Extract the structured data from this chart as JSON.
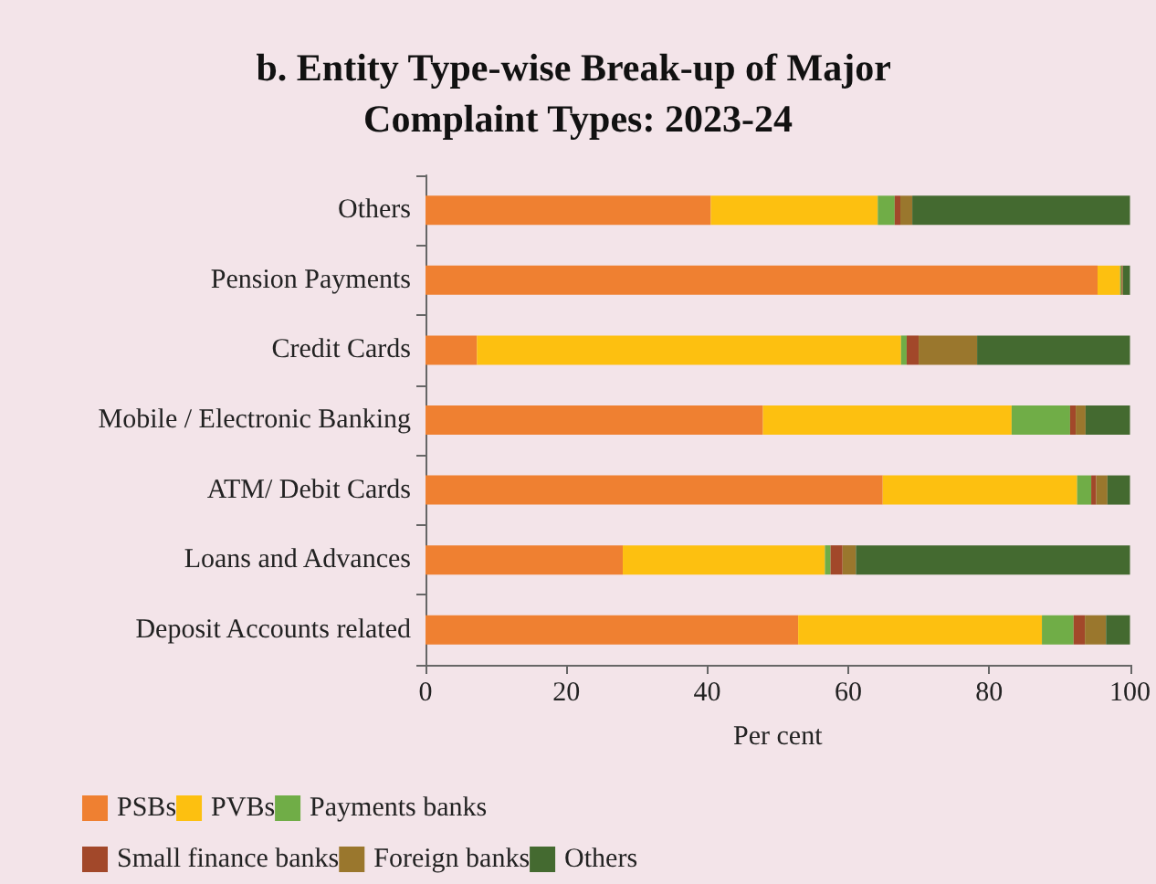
{
  "chart_data": {
    "type": "bar",
    "orientation": "horizontal",
    "stacked": true,
    "title": "b. Entity Type-wise Break-up of Major Complaint Types: 2023-24",
    "xlabel": "Per cent",
    "categories": [
      "Others",
      "Pension Payments",
      "Credit Cards",
      "Mobile / Electronic Banking",
      "ATM/ Debit Cards",
      "Loans and Advances",
      "Deposit Accounts related"
    ],
    "series": [
      {
        "name": "PSBs",
        "color": "#ef8031",
        "values": [
          40.5,
          95.4,
          7.3,
          47.9,
          64.9,
          28.0,
          52.9
        ]
      },
      {
        "name": "PVBs",
        "color": "#fdc010",
        "values": [
          23.7,
          3.2,
          60.2,
          35.3,
          27.6,
          28.7,
          34.6
        ]
      },
      {
        "name": "Payments banks",
        "color": "#70ad47",
        "values": [
          2.4,
          0.2,
          0.8,
          8.3,
          2.0,
          0.8,
          4.5
        ]
      },
      {
        "name": "Small finance banks",
        "color": "#a2482a",
        "values": [
          0.8,
          0.1,
          1.7,
          0.8,
          0.7,
          1.7,
          1.6
        ]
      },
      {
        "name": "Foreign banks",
        "color": "#9a772d",
        "values": [
          1.7,
          0.1,
          8.3,
          1.4,
          1.6,
          1.9,
          3.0
        ]
      },
      {
        "name": "Others",
        "color": "#446a30",
        "values": [
          30.9,
          1.0,
          21.7,
          6.3,
          3.2,
          38.9,
          3.4
        ]
      }
    ],
    "xlim": [
      0,
      100
    ],
    "xticks": [
      0,
      20,
      40,
      60,
      80,
      100
    ],
    "grid": false,
    "legend": "bottom"
  }
}
